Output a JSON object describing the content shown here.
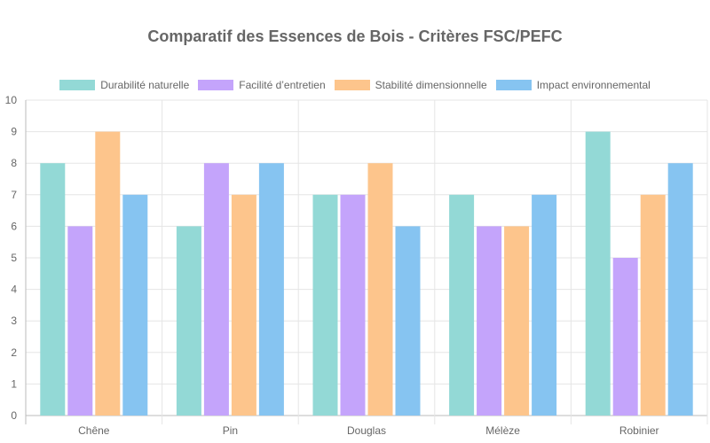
{
  "chart_data": {
    "type": "bar",
    "title": "Comparatif des Essences de Bois - Critères FSC/PEFC",
    "categories": [
      "Chêne",
      "Pin",
      "Douglas",
      "Mélèze",
      "Robinier"
    ],
    "series": [
      {
        "name": "Durabilité naturelle",
        "color": "#93d9d6",
        "values": [
          8,
          6,
          7,
          7,
          9
        ]
      },
      {
        "name": "Facilité d’entretien",
        "color": "#c4a4fb",
        "values": [
          6,
          8,
          7,
          6,
          5
        ]
      },
      {
        "name": "Stabilité dimensionnelle",
        "color": "#fdc58c",
        "values": [
          9,
          7,
          8,
          6,
          7
        ]
      },
      {
        "name": "Impact environnemental",
        "color": "#86c4f1",
        "values": [
          7,
          8,
          6,
          7,
          8
        ]
      }
    ],
    "ylim": [
      0,
      10
    ],
    "yticks": [
      0,
      1,
      2,
      3,
      4,
      5,
      6,
      7,
      8,
      9,
      10
    ],
    "grid": true,
    "legend": "top"
  }
}
